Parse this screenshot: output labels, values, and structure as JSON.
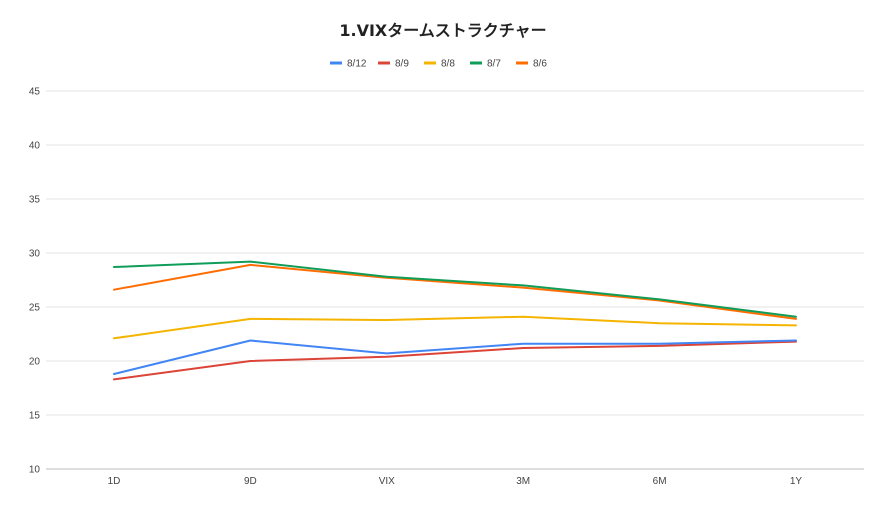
{
  "chart_data": {
    "type": "line",
    "title": "1.VIXタームストラクチャー",
    "xlabel": "",
    "ylabel": "",
    "categories": [
      "1D",
      "9D",
      "VIX",
      "3M",
      "6M",
      "1Y"
    ],
    "ylim": [
      10,
      45
    ],
    "yticks": [
      "10",
      "15",
      "20",
      "25",
      "30",
      "35",
      "40",
      "45"
    ],
    "grid": true,
    "legend_position": "top",
    "series": [
      {
        "name": "8/12",
        "color": "#4285f4",
        "values": [
          18.8,
          21.9,
          20.7,
          21.6,
          21.6,
          21.9
        ]
      },
      {
        "name": "8/9",
        "color": "#db4437",
        "values": [
          18.3,
          20.0,
          20.4,
          21.2,
          21.4,
          21.8
        ]
      },
      {
        "name": "8/8",
        "color": "#f4b400",
        "values": [
          22.1,
          23.9,
          23.8,
          24.1,
          23.5,
          23.3
        ]
      },
      {
        "name": "8/7",
        "color": "#0f9d58",
        "values": [
          28.7,
          29.2,
          27.8,
          27.0,
          25.7,
          24.1
        ]
      },
      {
        "name": "8/6",
        "color": "#ff6d01",
        "values": [
          26.6,
          28.9,
          27.7,
          26.8,
          25.6,
          23.9
        ]
      }
    ]
  }
}
